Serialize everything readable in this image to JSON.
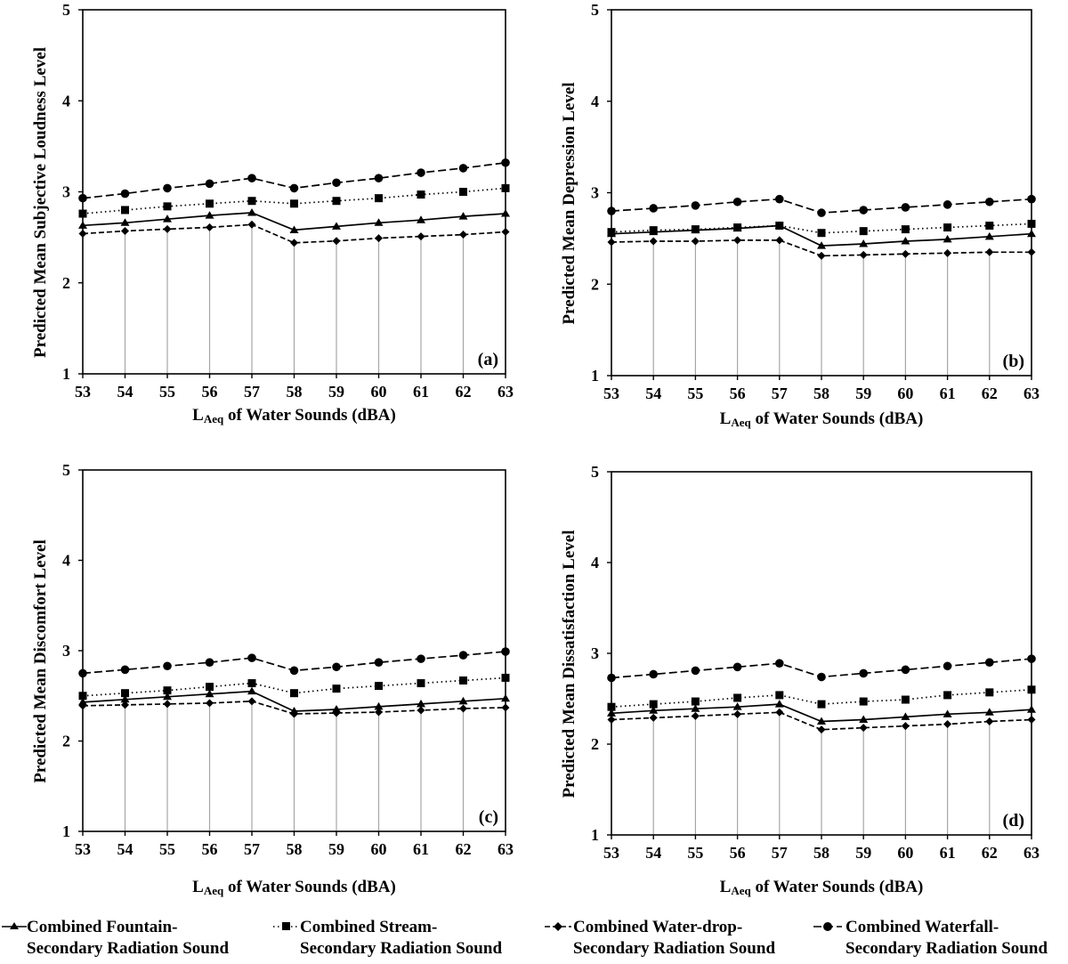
{
  "chart_data": [
    {
      "type": "line",
      "panel_label": "(a)",
      "ylabel": "Predicted Mean Subjective Loudness Level",
      "xlabel_prefix": "L",
      "xlabel_sub": "Aeq",
      "xlabel_suffix": " of Water Sounds (dBA)",
      "x": [
        53,
        54,
        55,
        56,
        57,
        58,
        59,
        60,
        61,
        62,
        63
      ],
      "ylim": [
        1,
        5
      ],
      "yticks": [
        1,
        2,
        3,
        4,
        5
      ],
      "series": [
        {
          "name": "Combined Fountain-Secondary Radiation Sound",
          "values": [
            2.63,
            2.66,
            2.7,
            2.74,
            2.77,
            2.58,
            2.62,
            2.66,
            2.69,
            2.73,
            2.76
          ]
        },
        {
          "name": "Combined Stream-Secondary Radiation Sound",
          "values": [
            2.76,
            2.8,
            2.84,
            2.87,
            2.9,
            2.87,
            2.9,
            2.93,
            2.97,
            3.0,
            3.04
          ]
        },
        {
          "name": "Combined Water-drop-Secondary Radiation Sound",
          "values": [
            2.54,
            2.57,
            2.59,
            2.61,
            2.64,
            2.44,
            2.46,
            2.49,
            2.51,
            2.53,
            2.56
          ]
        },
        {
          "name": "Combined Waterfall-Secondary Radiation Sound",
          "values": [
            2.93,
            2.98,
            3.04,
            3.09,
            3.15,
            3.04,
            3.1,
            3.15,
            3.21,
            3.26,
            3.32
          ]
        }
      ]
    },
    {
      "type": "line",
      "panel_label": "(b)",
      "ylabel": "Predicted Mean Depression Level",
      "xlabel_prefix": "L",
      "xlabel_sub": "Aeq",
      "xlabel_suffix": " of Water Sounds (dBA)",
      "x": [
        53,
        54,
        55,
        56,
        57,
        58,
        59,
        60,
        61,
        62,
        63
      ],
      "ylim": [
        1,
        5
      ],
      "yticks": [
        1,
        2,
        3,
        4,
        5
      ],
      "series": [
        {
          "name": "Combined Fountain-Secondary Radiation Sound",
          "values": [
            2.55,
            2.57,
            2.59,
            2.61,
            2.64,
            2.42,
            2.44,
            2.47,
            2.49,
            2.52,
            2.55
          ]
        },
        {
          "name": "Combined Stream-Secondary Radiation Sound",
          "values": [
            2.57,
            2.59,
            2.6,
            2.62,
            2.64,
            2.56,
            2.58,
            2.6,
            2.62,
            2.64,
            2.66
          ]
        },
        {
          "name": "Combined Water-drop-Secondary Radiation Sound",
          "values": [
            2.46,
            2.47,
            2.47,
            2.48,
            2.48,
            2.31,
            2.32,
            2.33,
            2.34,
            2.35,
            2.35
          ]
        },
        {
          "name": "Combined Waterfall-Secondary Radiation Sound",
          "values": [
            2.8,
            2.83,
            2.86,
            2.9,
            2.93,
            2.78,
            2.81,
            2.84,
            2.87,
            2.9,
            2.93
          ]
        }
      ]
    },
    {
      "type": "line",
      "panel_label": "(c)",
      "ylabel": "Predicted Mean Discomfort Level",
      "xlabel_prefix": "L",
      "xlabel_sub": "Aeq",
      "xlabel_suffix": " of Water Sounds (dBA)",
      "x": [
        53,
        54,
        55,
        56,
        57,
        58,
        59,
        60,
        61,
        62,
        63
      ],
      "ylim": [
        1,
        5
      ],
      "yticks": [
        1,
        2,
        3,
        4,
        5
      ],
      "series": [
        {
          "name": "Combined Fountain-Secondary Radiation Sound",
          "values": [
            2.43,
            2.46,
            2.49,
            2.52,
            2.55,
            2.33,
            2.35,
            2.38,
            2.41,
            2.44,
            2.47
          ]
        },
        {
          "name": "Combined Stream-Secondary Radiation Sound",
          "values": [
            2.5,
            2.53,
            2.56,
            2.6,
            2.64,
            2.53,
            2.58,
            2.61,
            2.64,
            2.67,
            2.7
          ]
        },
        {
          "name": "Combined Water-drop-Secondary Radiation Sound",
          "values": [
            2.39,
            2.4,
            2.41,
            2.42,
            2.44,
            2.3,
            2.31,
            2.32,
            2.34,
            2.36,
            2.37
          ]
        },
        {
          "name": "Combined Waterfall-Secondary Radiation Sound",
          "values": [
            2.75,
            2.79,
            2.83,
            2.87,
            2.92,
            2.78,
            2.82,
            2.87,
            2.91,
            2.95,
            2.99
          ]
        }
      ]
    },
    {
      "type": "line",
      "panel_label": "(d)",
      "ylabel": "Predicted Mean Dissatisfaction Level",
      "xlabel_prefix": "L",
      "xlabel_sub": "Aeq",
      "xlabel_suffix": " of Water Sounds (dBA)",
      "x": [
        53,
        54,
        55,
        56,
        57,
        58,
        59,
        60,
        61,
        62,
        63
      ],
      "ylim": [
        1,
        5
      ],
      "yticks": [
        1,
        2,
        3,
        4,
        5
      ],
      "series": [
        {
          "name": "Combined Fountain-Secondary Radiation Sound",
          "values": [
            2.34,
            2.37,
            2.39,
            2.41,
            2.44,
            2.25,
            2.27,
            2.3,
            2.33,
            2.35,
            2.38
          ]
        },
        {
          "name": "Combined Stream-Secondary Radiation Sound",
          "values": [
            2.41,
            2.44,
            2.47,
            2.51,
            2.54,
            2.44,
            2.47,
            2.49,
            2.54,
            2.57,
            2.6
          ]
        },
        {
          "name": "Combined Water-drop-Secondary Radiation Sound",
          "values": [
            2.27,
            2.29,
            2.31,
            2.33,
            2.35,
            2.16,
            2.18,
            2.2,
            2.22,
            2.25,
            2.27
          ]
        },
        {
          "name": "Combined Waterfall-Secondary Radiation Sound",
          "values": [
            2.73,
            2.77,
            2.81,
            2.85,
            2.89,
            2.74,
            2.78,
            2.82,
            2.86,
            2.9,
            2.94
          ]
        }
      ]
    }
  ],
  "legend": [
    {
      "line1": "Combined Fountain-",
      "line2": "Secondary Radiation Sound",
      "style": "solid",
      "marker": "triangle"
    },
    {
      "line1": "Combined Stream-",
      "line2": "Secondary Radiation Sound",
      "style": "dotted",
      "marker": "square"
    },
    {
      "line1": "Combined Water-drop-",
      "line2": "Secondary Radiation Sound",
      "style": "dashed",
      "marker": "diamond"
    },
    {
      "line1": "Combined Waterfall-",
      "line2": "Secondary Radiation Sound",
      "style": "longdash",
      "marker": "circle"
    }
  ]
}
